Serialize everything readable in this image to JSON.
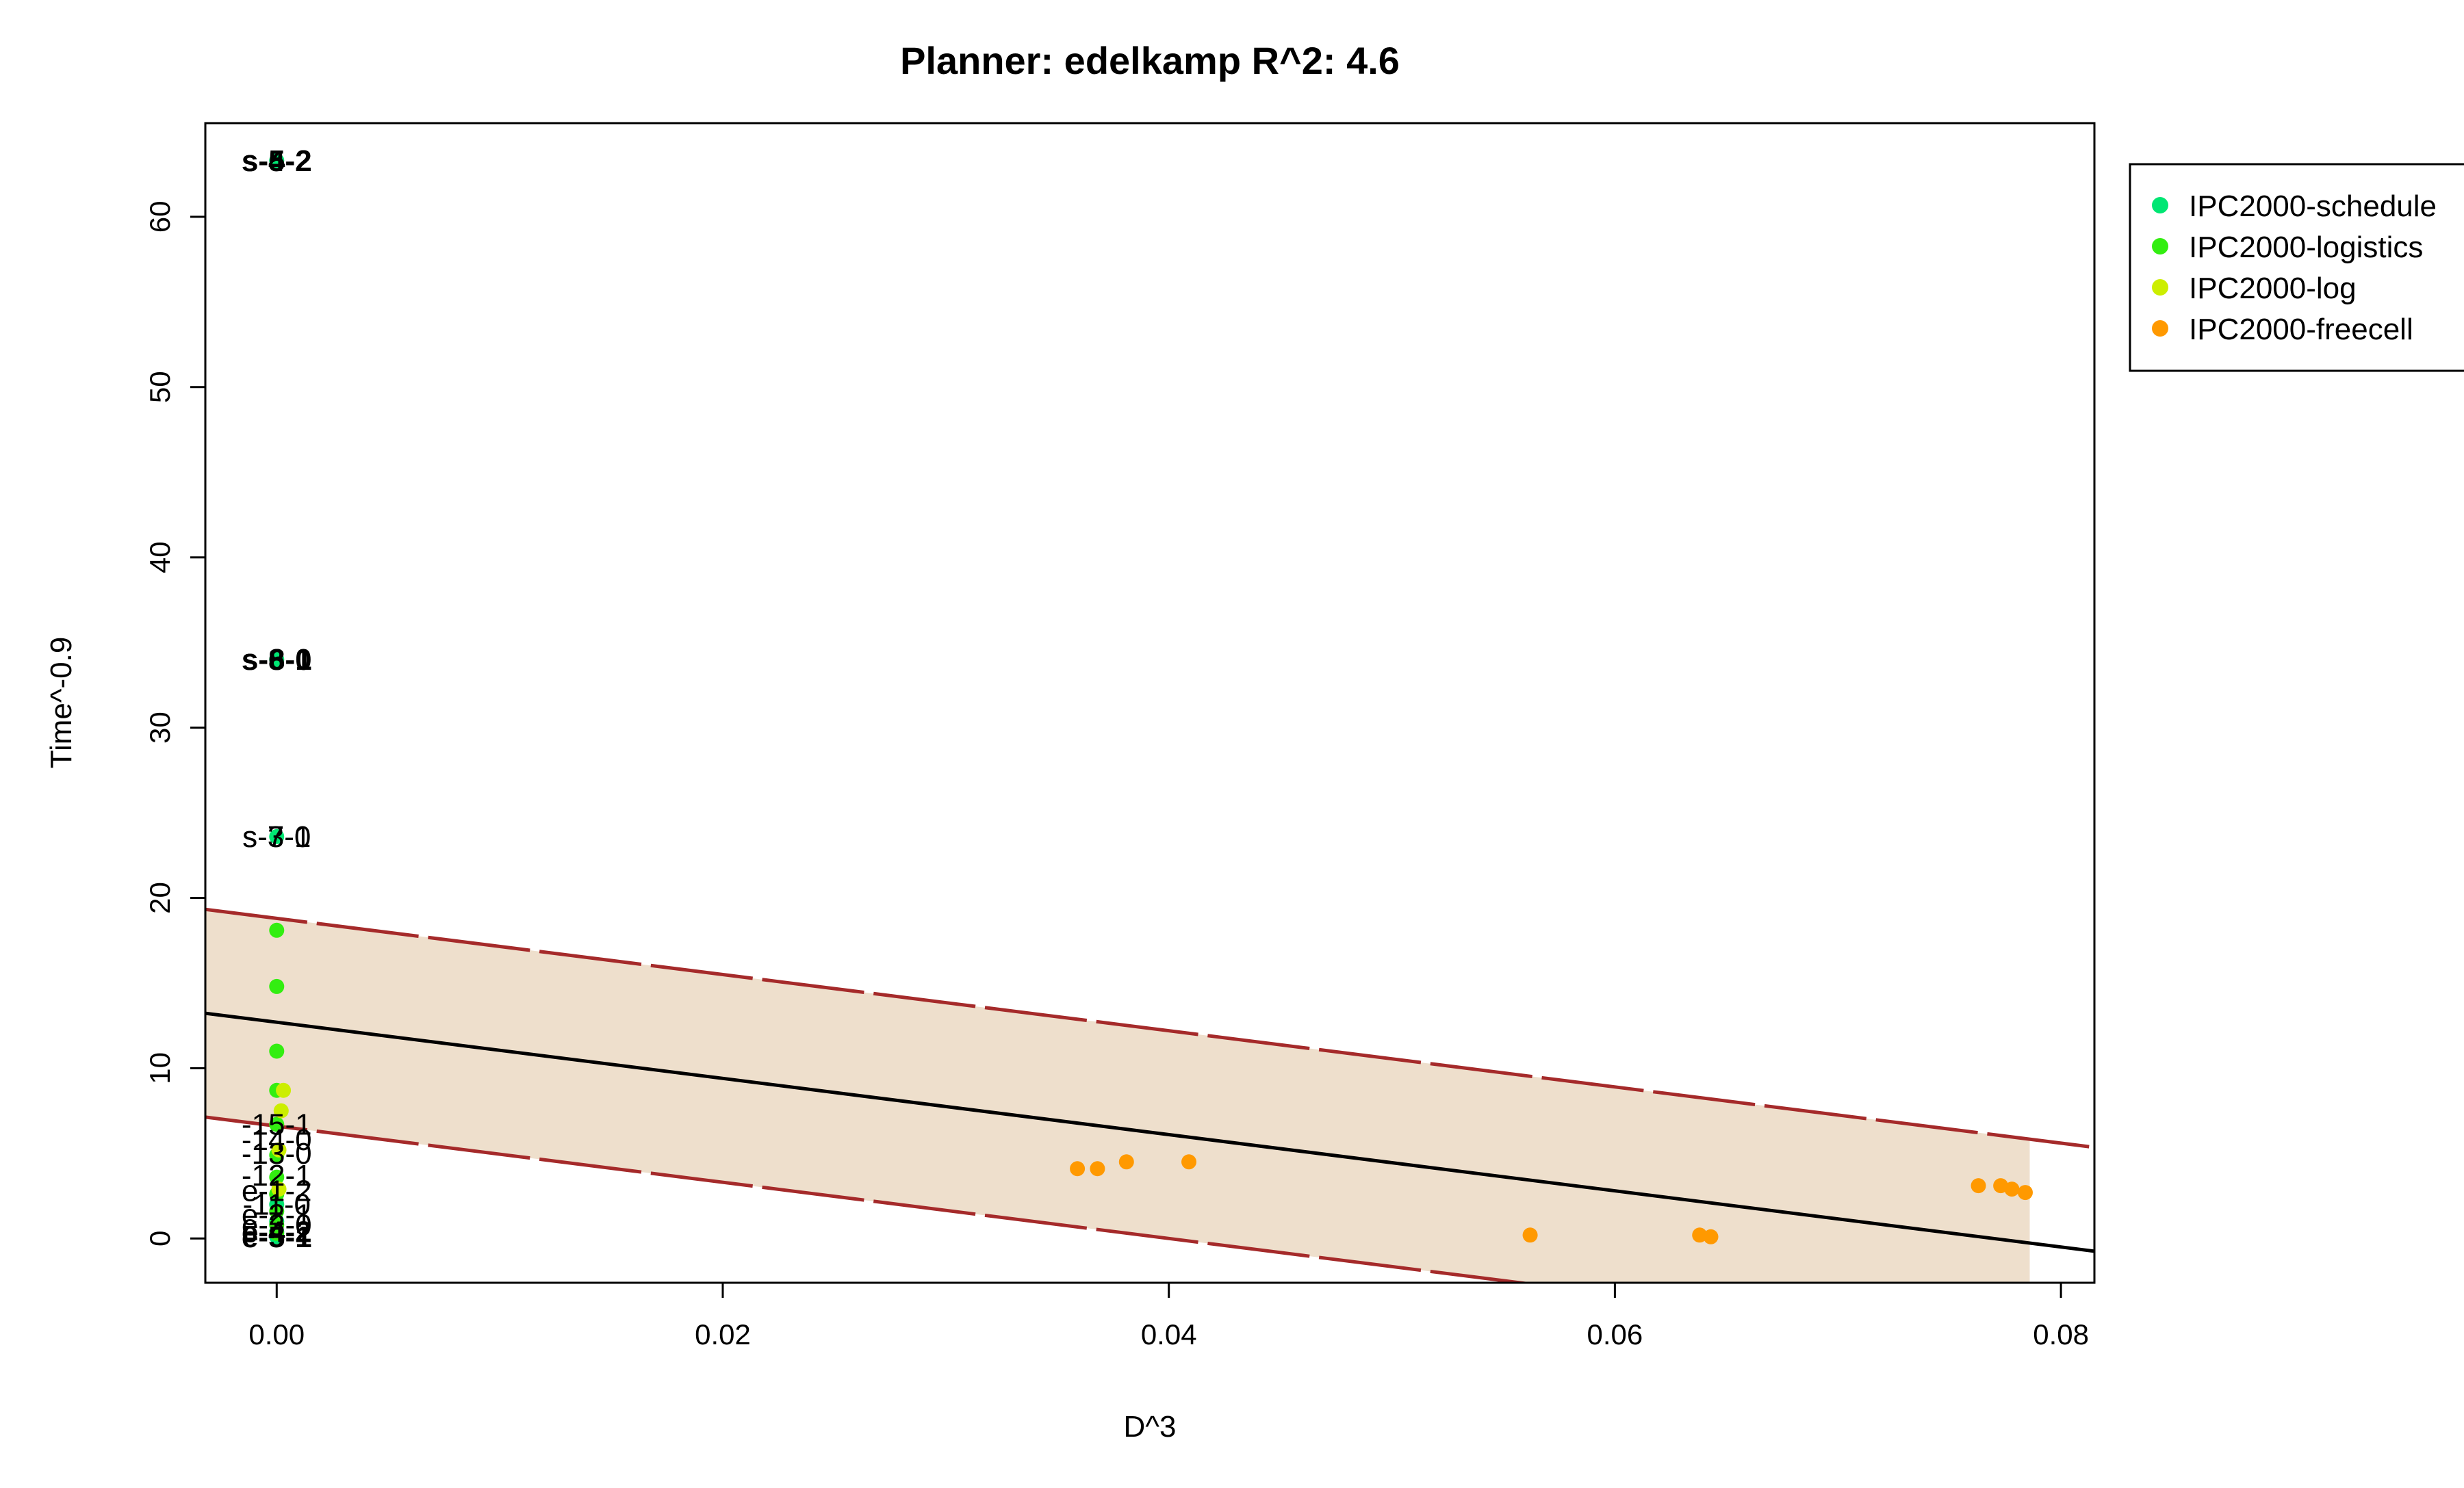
{
  "chart_data": {
    "type": "scatter",
    "title": "Planner: edelkamp R^2: 4.6",
    "xlabel": "D^3",
    "ylabel": "Time^-0.9",
    "xlim": [
      -0.0032,
      0.0815
    ],
    "ylim": [
      -2.6,
      65.5
    ],
    "x_ticks": [
      0.0,
      0.02,
      0.04,
      0.06,
      0.08
    ],
    "x_tick_labels": [
      "0.00",
      "0.02",
      "0.04",
      "0.06",
      "0.08"
    ],
    "y_ticks": [
      0,
      10,
      20,
      30,
      40,
      50,
      60
    ],
    "y_tick_labels": [
      "0",
      "10",
      "20",
      "30",
      "40",
      "50",
      "60"
    ],
    "grid": false,
    "legend_position": "top-right outside",
    "series": [
      {
        "name": "IPC2000-schedule",
        "color": "#00e673",
        "points": [
          [
            0.0,
            63.3
          ],
          [
            0.0,
            34.0
          ],
          [
            0.0,
            23.6
          ],
          [
            0.0,
            2.0
          ],
          [
            0.0,
            1.0
          ],
          [
            0.0,
            0.4
          ],
          [
            0.0,
            0.1
          ]
        ]
      },
      {
        "name": "IPC2000-logistics",
        "color": "#33ee11",
        "points": [
          [
            0.0,
            18.1
          ],
          [
            0.0,
            14.8
          ],
          [
            0.0,
            11.0
          ],
          [
            0.0,
            8.7
          ],
          [
            0.0,
            6.7
          ],
          [
            0.0,
            4.9
          ],
          [
            0.0,
            3.6
          ],
          [
            0.0,
            2.6
          ],
          [
            0.0,
            1.6
          ],
          [
            0.0,
            0.8
          ],
          [
            0.0,
            0.3
          ]
        ]
      },
      {
        "name": "IPC2000-log",
        "color": "#ccee00",
        "points": [
          [
            0.0003,
            8.7
          ],
          [
            0.0002,
            7.5
          ],
          [
            0.0001,
            5.2
          ],
          [
            0.0001,
            2.9
          ]
        ]
      },
      {
        "name": "IPC2000-freecell",
        "color": "#ff9900",
        "points": [
          [
            0.0359,
            4.1
          ],
          [
            0.0368,
            4.1
          ],
          [
            0.0381,
            4.5
          ],
          [
            0.0409,
            4.5
          ],
          [
            0.0562,
            0.2
          ],
          [
            0.0638,
            0.2
          ],
          [
            0.0643,
            0.1
          ],
          [
            0.0763,
            3.1
          ],
          [
            0.0773,
            3.1
          ],
          [
            0.0778,
            2.9
          ],
          [
            0.0784,
            2.7
          ]
        ]
      }
    ],
    "regression": {
      "intercept": 12.7,
      "slope": -165.0,
      "color": "#000000"
    },
    "prediction_band": {
      "upper_intercept": 18.8,
      "lower_intercept": 6.6,
      "slope": -165.0,
      "x_end": 0.0786,
      "line_color": "#a52a2a",
      "fill_color": "#eedfcc"
    },
    "point_labels": [
      {
        "text": "s-5-2",
        "x": 0.0,
        "y": 63.3,
        "bold": true
      },
      {
        "text": "s-4-2",
        "x": 0.0,
        "y": 63.3,
        "bold": true
      },
      {
        "text": "s-6-0",
        "x": 0.0,
        "y": 34.0,
        "bold": true
      },
      {
        "text": "s-8-1",
        "x": 0.0,
        "y": 34.0,
        "bold": true
      },
      {
        "text": "s-7-0",
        "x": 0.0,
        "y": 23.6,
        "bold": false
      },
      {
        "text": "s-3-1",
        "x": 0.0,
        "y": 23.6,
        "bold": false
      },
      {
        "text": "-15-1",
        "x": 0.0,
        "y": 6.7,
        "bold": false
      },
      {
        "text": "-14-0",
        "x": 0.0,
        "y": 5.8,
        "bold": false
      },
      {
        "text": "-13-0",
        "x": 0.0,
        "y": 5.0,
        "bold": false
      },
      {
        "text": "-12-1",
        "x": 0.0,
        "y": 3.7,
        "bold": false
      },
      {
        "text": "e-1-2",
        "x": 0.0,
        "y": 2.8,
        "bold": false
      },
      {
        "text": "-11-0",
        "x": 0.0,
        "y": 2.0,
        "bold": false
      },
      {
        "text": "e-2-1",
        "x": 0.0,
        "y": 1.4,
        "bold": false
      },
      {
        "text": "e-3-0",
        "x": 0.0,
        "y": 0.8,
        "bold": false
      },
      {
        "text": "e-4-2",
        "x": 0.0,
        "y": 0.4,
        "bold": true
      },
      {
        "text": "e-5-1",
        "x": 0.0,
        "y": 0.1,
        "bold": true
      }
    ]
  }
}
